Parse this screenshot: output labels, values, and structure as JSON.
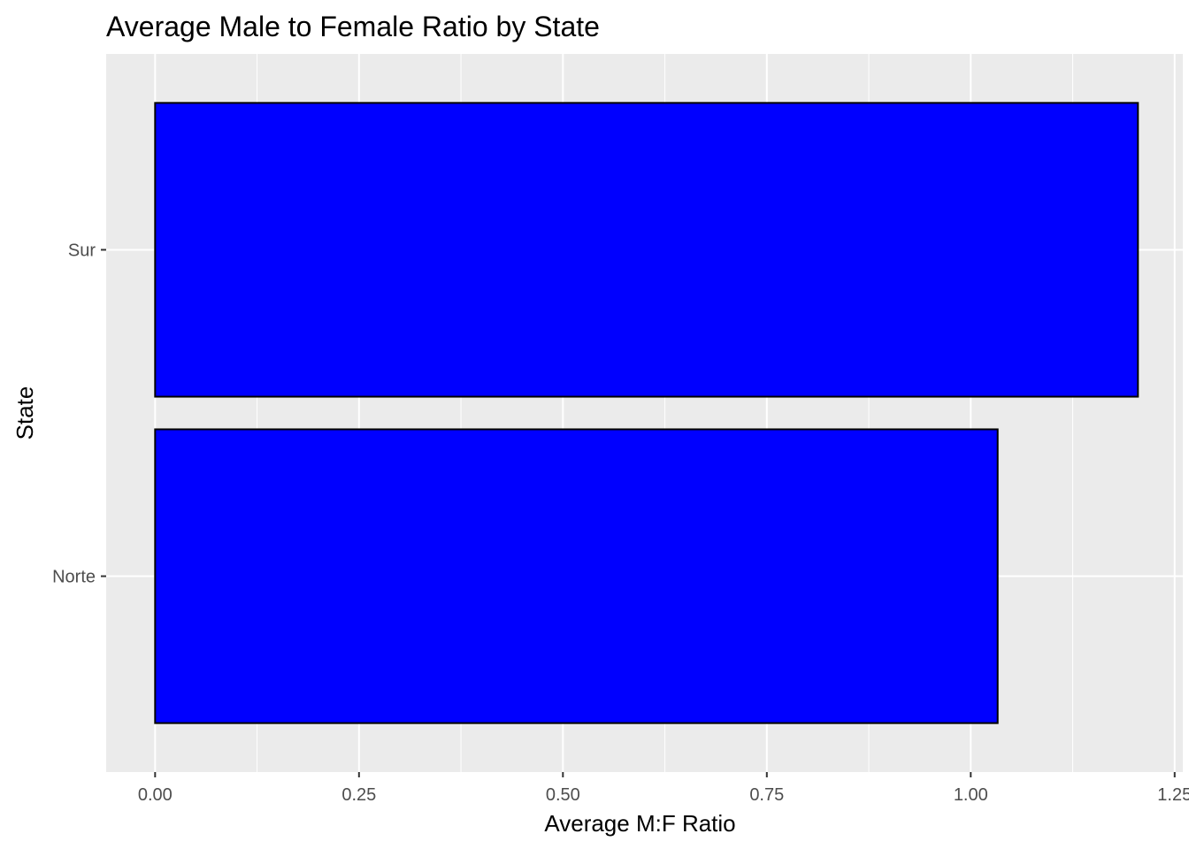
{
  "chart_data": {
    "type": "bar",
    "orientation": "horizontal",
    "title": "Average Male to Female Ratio by State",
    "xlabel": "Average M:F Ratio",
    "ylabel": "State",
    "categories": [
      "Norte",
      "Sur"
    ],
    "values": [
      1.033,
      1.205
    ],
    "xlim": [
      -0.06,
      1.26
    ],
    "x_ticks": [
      0,
      0.25,
      0.5,
      0.75,
      1.0,
      1.25
    ],
    "x_tick_labels": [
      "0.00",
      "0.25",
      "0.50",
      "0.75",
      "1.00",
      "1.25"
    ],
    "grid": true,
    "legend": "none",
    "colors": {
      "bar_fill": "#0000ff",
      "bar_outline": "#000000",
      "panel_background": "#ebebeb",
      "grid_line": "#ffffff",
      "tick_text": "#4d4d4d"
    }
  }
}
